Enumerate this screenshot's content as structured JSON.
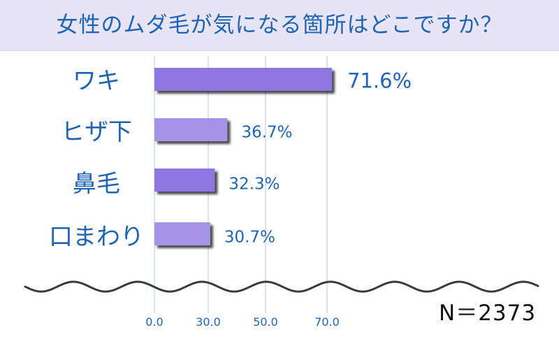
{
  "title": "女性のムダ毛が気になる箇所はどこですか？",
  "n_label": "N＝2373",
  "colors": {
    "title_bg": "#e7e4f6",
    "title_text": "#1f63b4",
    "bar_dark": "#8f74e0",
    "bar_light": "#a692e6",
    "label_text": "#1f63b4",
    "grid": "#bcd2ee"
  },
  "chart_data": {
    "type": "bar",
    "orientation": "horizontal",
    "categories": [
      "ワキ",
      "ヒザ下",
      "鼻毛",
      "口まわり"
    ],
    "values": [
      71.6,
      36.7,
      32.3,
      30.7
    ],
    "value_labels": [
      "71.6%",
      "36.7%",
      "32.3%",
      "30.7%"
    ],
    "x_ticks": [
      0,
      30,
      50,
      70
    ],
    "x_tick_labels": [
      "0.0",
      "30.0",
      "50.0",
      "70.0"
    ],
    "grid": true,
    "legend": "none"
  }
}
